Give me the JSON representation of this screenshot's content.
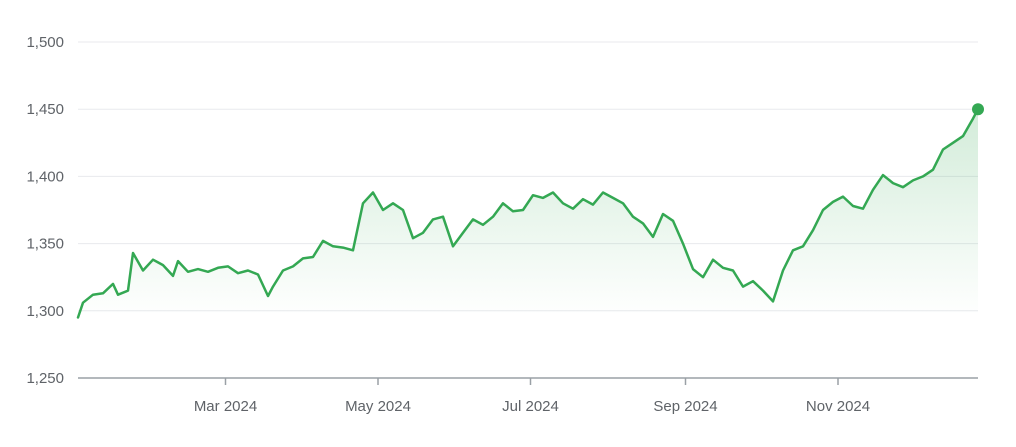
{
  "chart_data": {
    "type": "area",
    "title": "",
    "xlabel": "",
    "ylabel": "",
    "ylim": [
      1250,
      1500
    ],
    "xlim": [
      "2024-01-02",
      "2024-12-27"
    ],
    "grid": true,
    "y_ticks": [
      "1,250",
      "1,300",
      "1,350",
      "1,400",
      "1,450",
      "1,500"
    ],
    "y_tick_values": [
      1250,
      1300,
      1350,
      1400,
      1450,
      1500
    ],
    "x_ticks": [
      {
        "label": "Mar 2024",
        "date": "2024-03-01"
      },
      {
        "label": "May 2024",
        "date": "2024-05-01"
      },
      {
        "label": "Jul 2024",
        "date": "2024-07-01"
      },
      {
        "label": "Sep 2024",
        "date": "2024-09-01"
      },
      {
        "label": "Nov 2024",
        "date": "2024-11-01"
      }
    ],
    "colors": {
      "line": "#34a853",
      "fill_top": "#34a853"
    },
    "series": [
      {
        "x": [
          "2024-01-02",
          "2024-01-04",
          "2024-01-08",
          "2024-01-12",
          "2024-01-16",
          "2024-01-18",
          "2024-01-22",
          "2024-01-24",
          "2024-01-28",
          "2024-02-01",
          "2024-02-03",
          "2024-02-05",
          "2024-02-09",
          "2024-02-11",
          "2024-02-15",
          "2024-02-19",
          "2024-02-23",
          "2024-02-27",
          "2024-03-02",
          "2024-03-06",
          "2024-03-10",
          "2024-03-14",
          "2024-03-18",
          "2024-03-20",
          "2024-03-24",
          "2024-03-28",
          "2024-04-01",
          "2024-04-05",
          "2024-04-09",
          "2024-04-13",
          "2024-04-17",
          "2024-04-21",
          "2024-04-25",
          "2024-04-29",
          "2024-05-03",
          "2024-05-07",
          "2024-05-11",
          "2024-05-15",
          "2024-05-19",
          "2024-05-23",
          "2024-05-27",
          "2024-05-31",
          "2024-06-04",
          "2024-06-08",
          "2024-06-12",
          "2024-06-16",
          "2024-06-20",
          "2024-06-24",
          "2024-06-28",
          "2024-07-02",
          "2024-07-06",
          "2024-07-10",
          "2024-07-14",
          "2024-07-18",
          "2024-07-22",
          "2024-07-26",
          "2024-07-30",
          "2024-08-03",
          "2024-08-07",
          "2024-08-11",
          "2024-08-15",
          "2024-08-19",
          "2024-08-23",
          "2024-08-27",
          "2024-08-31",
          "2024-09-04",
          "2024-09-08",
          "2024-09-12",
          "2024-09-16",
          "2024-09-20",
          "2024-09-24",
          "2024-09-28",
          "2024-10-02",
          "2024-10-06",
          "2024-10-10",
          "2024-10-14",
          "2024-10-18",
          "2024-10-22",
          "2024-10-26",
          "2024-10-30",
          "2024-11-03",
          "2024-11-07",
          "2024-11-11",
          "2024-11-15",
          "2024-11-19",
          "2024-11-23",
          "2024-11-27",
          "2024-12-01",
          "2024-12-05",
          "2024-12-09",
          "2024-12-13",
          "2024-12-17",
          "2024-12-21",
          "2024-12-25",
          "2024-12-27"
        ],
        "values": [
          1295,
          1306,
          1312,
          1313,
          1320,
          1312,
          1315,
          1343,
          1330,
          1338,
          1336,
          1334,
          1326,
          1337,
          1329,
          1331,
          1329,
          1332,
          1333,
          1328,
          1330,
          1327,
          1311,
          1318,
          1330,
          1333,
          1339,
          1340,
          1352,
          1348,
          1347,
          1345,
          1380,
          1388,
          1375,
          1380,
          1375,
          1354,
          1358,
          1368,
          1370,
          1348,
          1358,
          1368,
          1364,
          1370,
          1380,
          1374,
          1375,
          1386,
          1384,
          1388,
          1380,
          1376,
          1383,
          1379,
          1388,
          1384,
          1380,
          1370,
          1365,
          1355,
          1372,
          1367,
          1350,
          1331,
          1325,
          1338,
          1332,
          1330,
          1318,
          1322,
          1315,
          1307,
          1330,
          1345,
          1348,
          1360,
          1375,
          1381,
          1385,
          1378,
          1376,
          1390,
          1401,
          1395,
          1392,
          1397,
          1400,
          1405,
          1420,
          1425,
          1430,
          1443,
          1450
        ]
      }
    ]
  }
}
